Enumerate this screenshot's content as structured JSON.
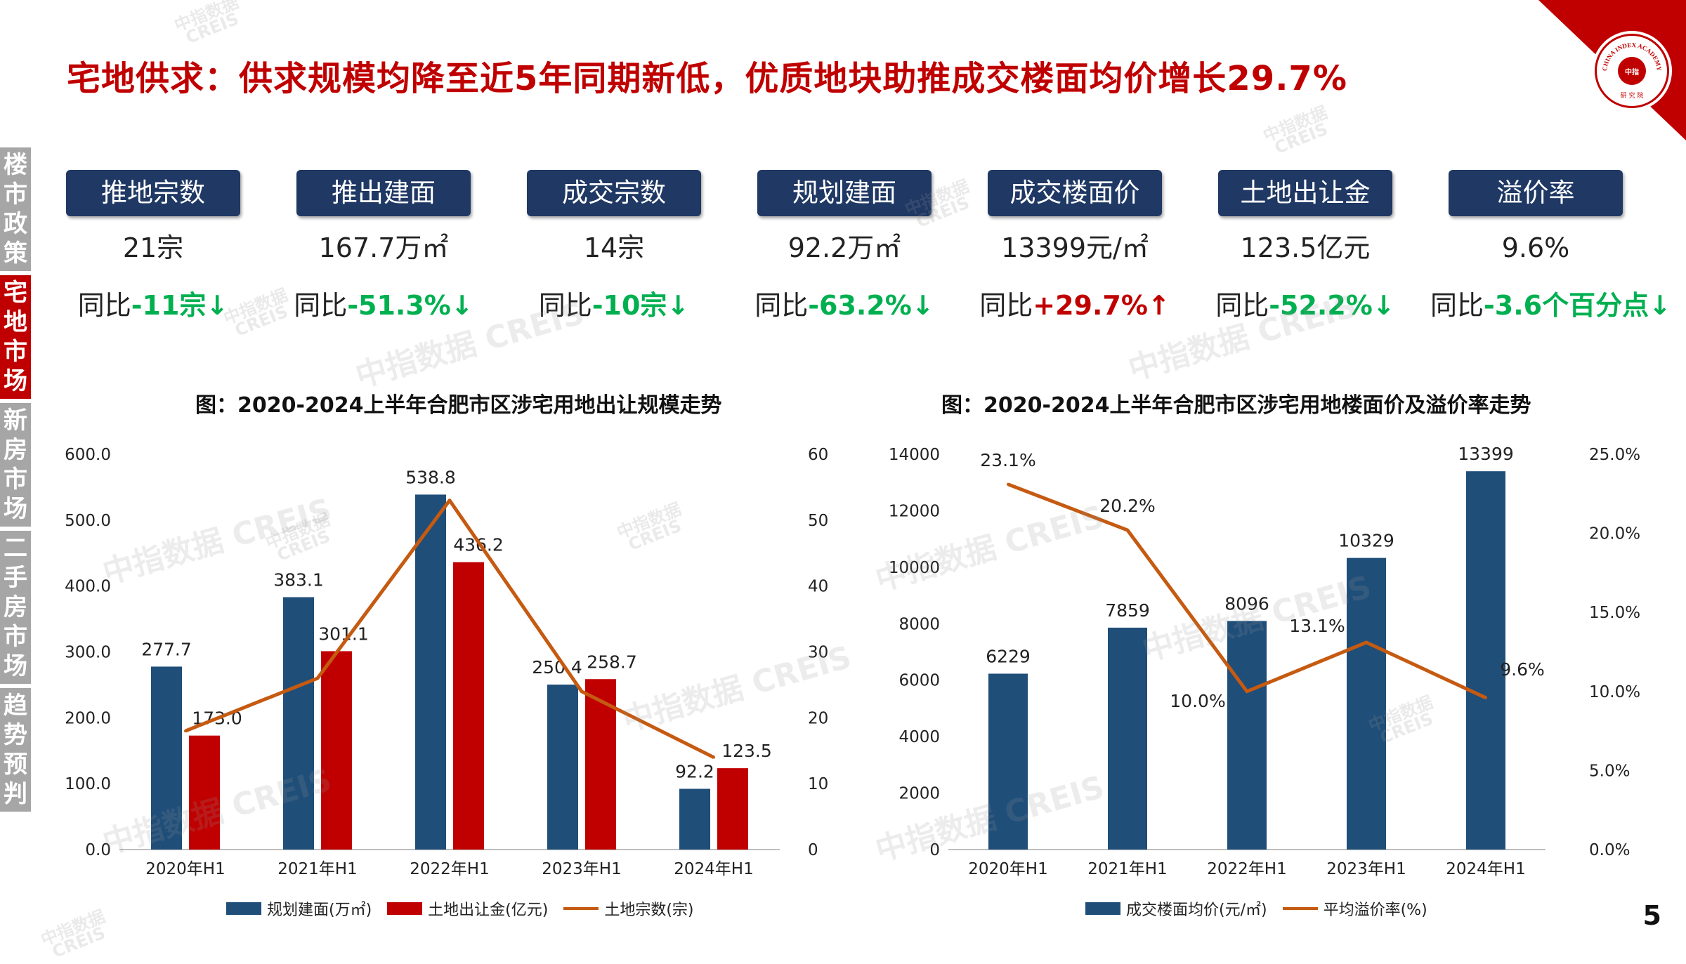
{
  "title": "宅地供求：供求规模均降至近5年同期新低，优质地块助推成交楼面均价增长29.7%",
  "page_number": "5",
  "logo": {
    "text_top": "CHINA INDEX ACADEMY",
    "text_bottom": "研 究 院",
    "center": "中指"
  },
  "watermark": {
    "main": "中指数据 CREIS",
    "small_cn": "中指数据",
    "small_en": "CREIS"
  },
  "sidebar": [
    {
      "label": "楼市政策",
      "active": false
    },
    {
      "label": "宅地市场",
      "active": true
    },
    {
      "label": "新房市场",
      "active": false
    },
    {
      "label": "二手房市场",
      "active": false
    },
    {
      "label": "趋势预判",
      "active": false
    }
  ],
  "kpis": [
    {
      "label": "推地宗数",
      "value": "21宗",
      "yoy_prefix": "同比",
      "yoy": "-11宗↓",
      "dir": "down"
    },
    {
      "label": "推出建面",
      "value": "167.7万㎡",
      "yoy_prefix": "同比",
      "yoy": "-51.3%↓",
      "dir": "down"
    },
    {
      "label": "成交宗数",
      "value": "14宗",
      "yoy_prefix": "同比",
      "yoy": "-10宗↓",
      "dir": "down"
    },
    {
      "label": "规划建面",
      "value": "92.2万㎡",
      "yoy_prefix": "同比",
      "yoy": "-63.2%↓",
      "dir": "down"
    },
    {
      "label": "成交楼面价",
      "value": "13399元/㎡",
      "yoy_prefix": "同比",
      "yoy": "+29.7%↑",
      "dir": "up"
    },
    {
      "label": "土地出让金",
      "value": "123.5亿元",
      "yoy_prefix": "同比",
      "yoy": "-52.2%↓",
      "dir": "down"
    },
    {
      "label": "溢价率",
      "value": "9.6%",
      "yoy_prefix": "同比",
      "yoy": "-3.6个百分点↓",
      "dir": "down"
    }
  ],
  "colors": {
    "navy": "#1f4e79",
    "red": "#c00000",
    "orange": "#c55a11",
    "green": "#00b050",
    "up": "#c00000"
  },
  "chart_data": [
    {
      "type": "bar+line",
      "title": "图：2020-2024上半年合肥市区涉宅用地出让规模走势",
      "categories": [
        "2020年H1",
        "2021年H1",
        "2022年H1",
        "2023年H1",
        "2024年H1"
      ],
      "series": [
        {
          "name": "规划建面(万㎡)",
          "type": "bar",
          "axis": "left",
          "values": [
            277.7,
            383.1,
            538.8,
            250.4,
            92.2
          ],
          "labels": [
            "277.7",
            "383.1",
            "538.8",
            "250.4",
            "92.2"
          ]
        },
        {
          "name": "土地出让金(亿元)",
          "type": "bar",
          "axis": "left",
          "values": [
            173.0,
            301.1,
            436.2,
            258.7,
            123.5
          ],
          "labels": [
            "173.0",
            "301.1",
            "436.2",
            "258.7",
            "123.5"
          ]
        },
        {
          "name": "土地宗数(宗)",
          "type": "line",
          "axis": "right",
          "values": [
            18,
            26,
            53,
            24,
            14
          ]
        }
      ],
      "y_left": {
        "min": 0,
        "max": 600,
        "ticks": [
          "0.0",
          "100.0",
          "200.0",
          "300.0",
          "400.0",
          "500.0",
          "600.0"
        ]
      },
      "y_right": {
        "min": 0,
        "max": 60,
        "ticks": [
          "0",
          "10",
          "20",
          "30",
          "40",
          "50",
          "60"
        ]
      }
    },
    {
      "type": "bar+line",
      "title": "图：2020-2024上半年合肥市区涉宅用地楼面价及溢价率走势",
      "categories": [
        "2020年H1",
        "2021年H1",
        "2022年H1",
        "2023年H1",
        "2024年H1"
      ],
      "series": [
        {
          "name": "成交楼面均价(元/㎡)",
          "type": "bar",
          "axis": "left",
          "values": [
            6229,
            7859,
            8096,
            10329,
            13399
          ],
          "labels": [
            "6229",
            "7859",
            "8096",
            "10329",
            "13399"
          ]
        },
        {
          "name": "平均溢价率(%)",
          "type": "line",
          "axis": "right",
          "values": [
            23.1,
            20.2,
            10.0,
            13.1,
            9.6
          ],
          "labels": [
            "23.1%",
            "20.2%",
            "10.0%",
            "13.1%",
            "9.6%"
          ]
        }
      ],
      "y_left": {
        "min": 0,
        "max": 14000,
        "ticks": [
          "0",
          "2000",
          "4000",
          "6000",
          "8000",
          "10000",
          "12000",
          "14000"
        ]
      },
      "y_right": {
        "min": 0,
        "max": 25,
        "ticks": [
          "0.0%",
          "5.0%",
          "10.0%",
          "15.0%",
          "20.0%",
          "25.0%"
        ]
      }
    }
  ]
}
